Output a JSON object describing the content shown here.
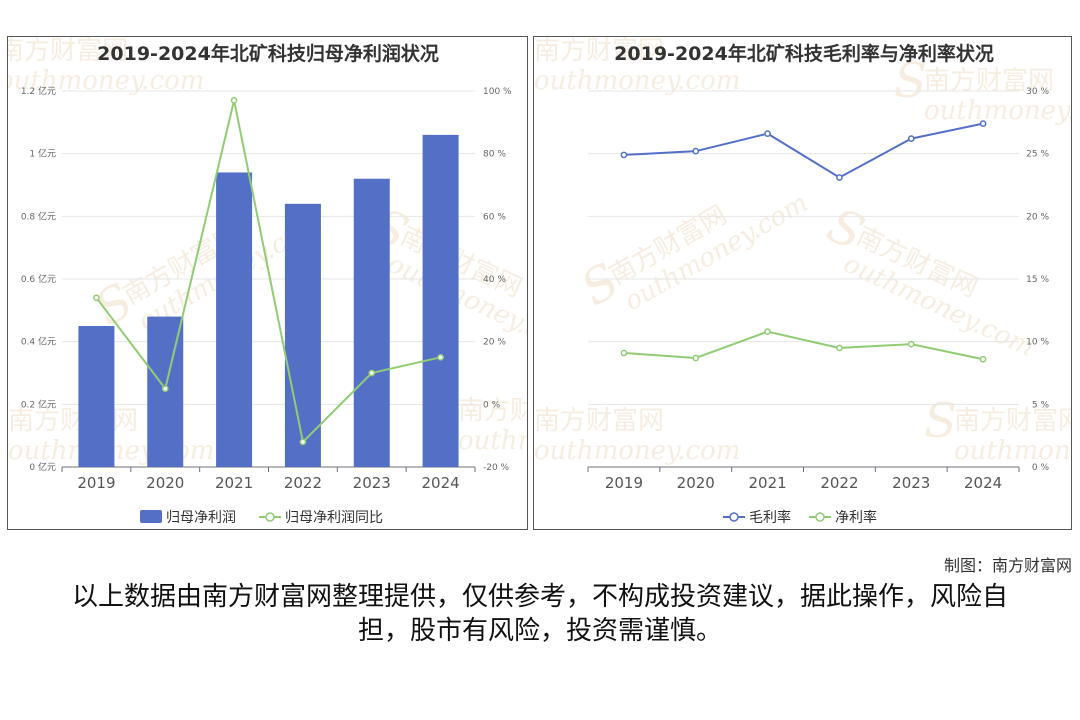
{
  "chart_data": [
    {
      "type": "bar+line",
      "title": "2019-2024年北矿科技归母净利润状况",
      "categories": [
        "2019",
        "2020",
        "2021",
        "2022",
        "2023",
        "2024"
      ],
      "y_left": {
        "ticks": [
          "0 亿元",
          "0.2 亿元",
          "0.4 亿元",
          "0.6 亿元",
          "0.8 亿元",
          "1 亿元",
          "1.2 亿元"
        ],
        "range": [
          0,
          1.2
        ]
      },
      "y_right": {
        "ticks": [
          "-20 %",
          "0 %",
          "20 %",
          "40 %",
          "60 %",
          "80 %",
          "100 %"
        ],
        "range": [
          -20,
          100
        ]
      },
      "series": [
        {
          "name": "归母净利润",
          "kind": "bar",
          "axis": "left",
          "color": "#5470c6",
          "values": [
            0.45,
            0.48,
            0.94,
            0.84,
            0.92,
            1.06
          ]
        },
        {
          "name": "归母净利润同比",
          "kind": "line",
          "axis": "right",
          "color": "#91cc75",
          "values": [
            34,
            5,
            97,
            -12,
            10,
            15
          ]
        }
      ],
      "legend": "bottom",
      "grid": true
    },
    {
      "type": "line",
      "title": "2019-2024年北矿科技毛利率与净利率状况",
      "categories": [
        "2019",
        "2020",
        "2021",
        "2022",
        "2023",
        "2024"
      ],
      "y_right": {
        "ticks": [
          "0 %",
          "5 %",
          "10 %",
          "15 %",
          "20 %",
          "25 %",
          "30 %"
        ],
        "range": [
          0,
          30
        ]
      },
      "series": [
        {
          "name": "毛利率",
          "kind": "line",
          "axis": "right",
          "color": "#5470c6",
          "values": [
            24.9,
            25.2,
            26.6,
            23.1,
            26.2,
            27.4
          ]
        },
        {
          "name": "净利率",
          "kind": "line",
          "axis": "right",
          "color": "#91cc75",
          "values": [
            9.1,
            8.7,
            10.8,
            9.5,
            9.8,
            8.6
          ]
        }
      ],
      "legend": "bottom",
      "grid": true
    }
  ],
  "watermark": {
    "cn": "南方财富网",
    "en": "outhmoney.com",
    "s": "S"
  },
  "credit": "制图：南方财富网",
  "disclaimer": "以上数据由南方财富网整理提供，仅供参考，不构成投资建议，据此操作，风险自担，股市有风险，投资需谨慎。"
}
